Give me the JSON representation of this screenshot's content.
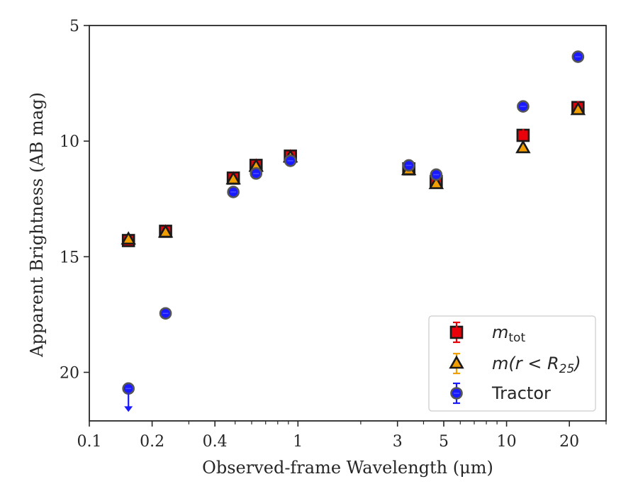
{
  "chart_data": {
    "type": "scatter",
    "xlabel": "Observed-frame Wavelength (μm)",
    "ylabel": "Apparent Brightness (AB mag)",
    "xscale": "log",
    "xlim": [
      0.1,
      30
    ],
    "ylim": [
      22.1,
      5
    ],
    "y_inverted": true,
    "xticks": [
      0.1,
      0.2,
      0.4,
      1,
      3,
      5,
      10,
      20
    ],
    "xtick_labels": [
      "0.1",
      "0.2",
      "0.4",
      "1",
      "3",
      "5",
      "10",
      "20"
    ],
    "yticks": [
      5,
      10,
      15,
      20
    ],
    "ytick_labels": [
      "5",
      "10",
      "15",
      "20"
    ],
    "grid": false,
    "legend_position": "lower-right",
    "series": [
      {
        "name": "m_tot",
        "label_main": "m",
        "label_sub": "tot",
        "marker": "square",
        "color": "#e8000b",
        "edge": "#1a1a1a",
        "points": [
          {
            "x": 0.154,
            "y": 14.3
          },
          {
            "x": 0.232,
            "y": 13.9
          },
          {
            "x": 0.49,
            "y": 11.6
          },
          {
            "x": 0.63,
            "y": 11.05
          },
          {
            "x": 0.92,
            "y": 10.65
          },
          {
            "x": 3.4,
            "y": 11.2
          },
          {
            "x": 4.6,
            "y": 11.75
          },
          {
            "x": 12.0,
            "y": 9.75
          },
          {
            "x": 22.0,
            "y": 8.55
          }
        ]
      },
      {
        "name": "m(r < R25)",
        "label_main": "m(r < R",
        "label_sub": "25",
        "label_end": ")",
        "marker": "triangle",
        "color": "#f19e00",
        "edge": "#1a1a1a",
        "points": [
          {
            "x": 0.154,
            "y": 14.25
          },
          {
            "x": 0.232,
            "y": 13.95
          },
          {
            "x": 0.49,
            "y": 11.65
          },
          {
            "x": 0.63,
            "y": 11.1
          },
          {
            "x": 0.92,
            "y": 10.7
          },
          {
            "x": 3.4,
            "y": 11.25
          },
          {
            "x": 4.6,
            "y": 11.85
          },
          {
            "x": 12.0,
            "y": 10.3
          },
          {
            "x": 22.0,
            "y": 8.65
          }
        ]
      },
      {
        "name": "Tractor",
        "label_main": "Tractor",
        "marker": "circle",
        "color": "#1a1aff",
        "edge": "#555555",
        "points": [
          {
            "x": 0.154,
            "y": 20.7,
            "upper_limit": true
          },
          {
            "x": 0.232,
            "y": 17.45
          },
          {
            "x": 0.49,
            "y": 12.2
          },
          {
            "x": 0.63,
            "y": 11.4
          },
          {
            "x": 0.92,
            "y": 10.85
          },
          {
            "x": 3.4,
            "y": 11.05
          },
          {
            "x": 4.6,
            "y": 11.45
          },
          {
            "x": 12.0,
            "y": 8.5
          },
          {
            "x": 22.0,
            "y": 6.35
          }
        ]
      }
    ]
  }
}
